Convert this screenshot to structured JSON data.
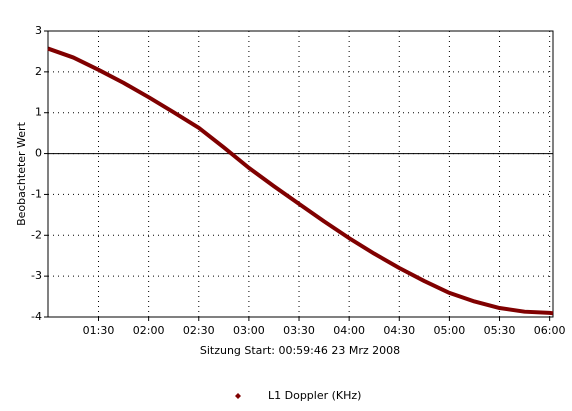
{
  "chart_data": {
    "type": "line",
    "y_label": "Beobachteter Wert",
    "x_label": "Sitzung Start:  00:59:46 23 Mrz 2008",
    "x": [
      59.77,
      75,
      90,
      105,
      120,
      135,
      150,
      165,
      180,
      195,
      210,
      225,
      240,
      255,
      270,
      285,
      300,
      315,
      330,
      345,
      360,
      362
    ],
    "series": [
      {
        "name": "L1 Doppler (KHz)",
        "color": "#800000",
        "values": [
          2.57,
          2.35,
          2.05,
          1.73,
          1.38,
          1.01,
          0.63,
          0.15,
          -0.35,
          -0.8,
          -1.23,
          -1.66,
          -2.07,
          -2.45,
          -2.8,
          -3.12,
          -3.41,
          -3.62,
          -3.78,
          -3.87,
          -3.9,
          -3.91
        ]
      }
    ],
    "xlim": [
      59.77,
      362
    ],
    "xticks": [
      {
        "value": 90,
        "label": "01:30"
      },
      {
        "value": 120,
        "label": "02:00"
      },
      {
        "value": 150,
        "label": "02:30"
      },
      {
        "value": 180,
        "label": "03:00"
      },
      {
        "value": 210,
        "label": "03:30"
      },
      {
        "value": 240,
        "label": "04:00"
      },
      {
        "value": 270,
        "label": "04:30"
      },
      {
        "value": 300,
        "label": "05:00"
      },
      {
        "value": 330,
        "label": "05:30"
      },
      {
        "value": 360,
        "label": "06:00"
      }
    ],
    "ylim": [
      -4,
      3
    ],
    "yticks": [
      -4,
      -3,
      -2,
      -1,
      0,
      1,
      2,
      3
    ],
    "grid": true
  }
}
